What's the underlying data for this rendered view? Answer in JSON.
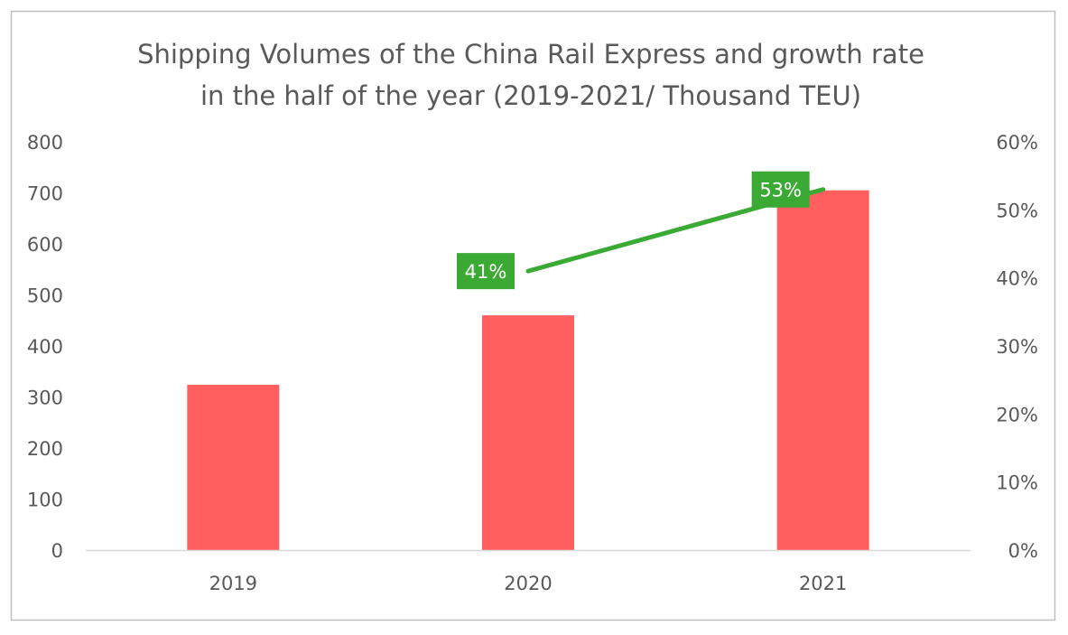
{
  "chart_data": {
    "type": "bar",
    "title_lines": [
      "Shipping Volumes of the China Rail Express and growth rate",
      "in the half of the year (2019-2021/ Thousand TEU)"
    ],
    "categories": [
      "2019",
      "2020",
      "2021"
    ],
    "series": [
      {
        "type": "bar",
        "axis": "left",
        "values": [
          324,
          460,
          705
        ],
        "color": "#FF5F5F"
      },
      {
        "type": "line",
        "axis": "right",
        "values": [
          null,
          41,
          53
        ],
        "labels": [
          "",
          "41%",
          "53%"
        ],
        "color": "#3AAA35"
      }
    ],
    "left_axis": {
      "ylim": [
        0,
        800
      ],
      "ticks": [
        "0",
        "100",
        "200",
        "300",
        "400",
        "500",
        "600",
        "700",
        "800"
      ]
    },
    "right_axis": {
      "ylim": [
        0,
        60
      ],
      "ticks": [
        "0%",
        "10%",
        "20%",
        "30%",
        "40%",
        "50%",
        "60%"
      ]
    },
    "grid": false,
    "legend": "none"
  }
}
